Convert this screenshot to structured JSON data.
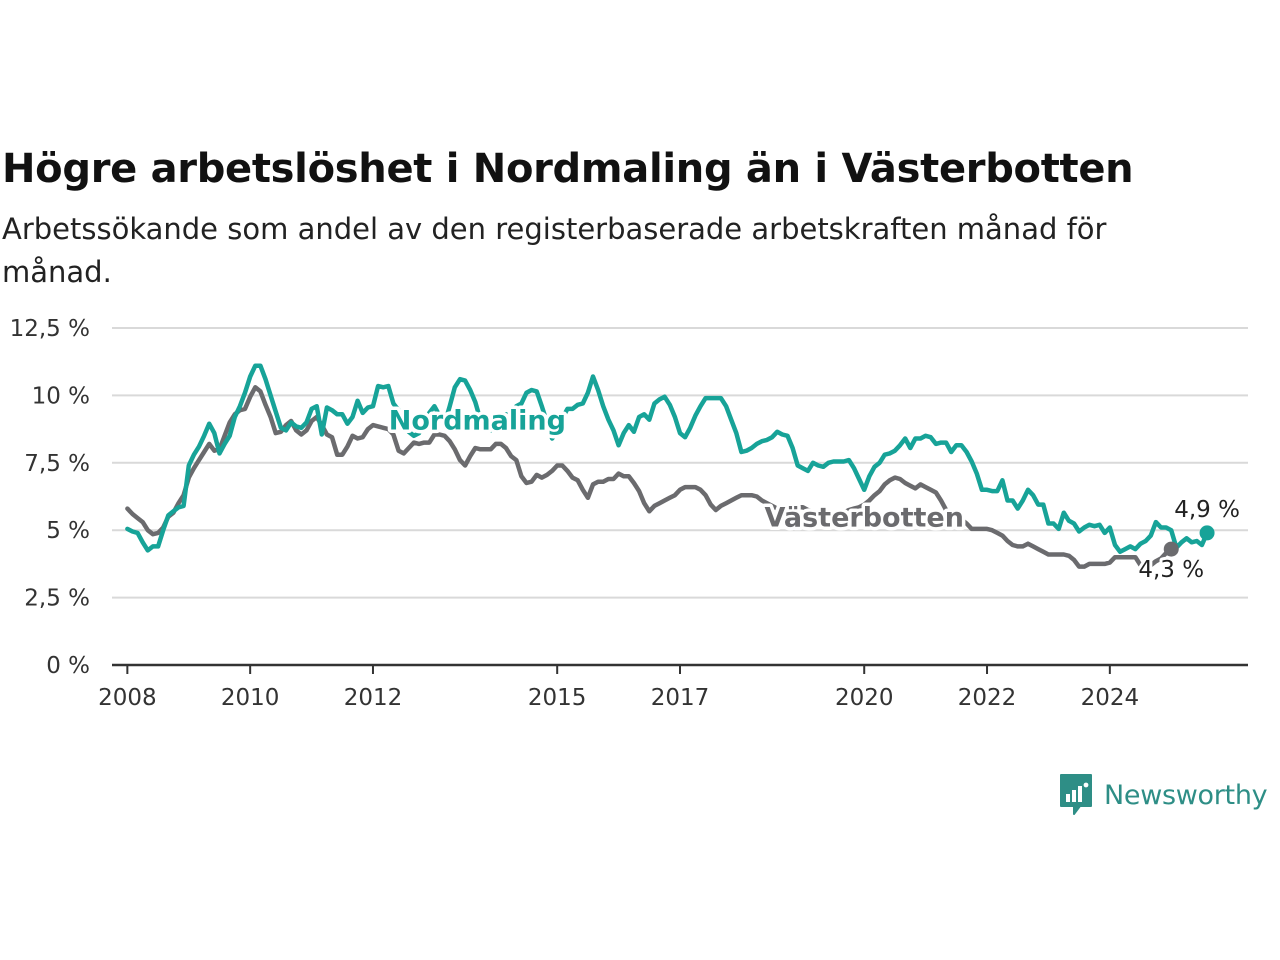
{
  "header": {
    "title": "Högre arbetslöshet i Nordmaling än i Västerbotten",
    "subtitle": "Arbetssökande som andel av den registerbaserade arbetskraften månad för månad."
  },
  "brand": {
    "name": "Newsworthy",
    "icon": "newsworthy-logo-icon",
    "color": "#2e8e86"
  },
  "chart_data": {
    "type": "line",
    "title": "Högre arbetslöshet i Nordmaling än i Västerbotten",
    "subtitle": "Arbetssökande som andel av den registerbaserade arbetskraften månad för månad.",
    "xlabel": "",
    "ylabel": "",
    "xlim": [
      2007.75,
      2026.25
    ],
    "ylim": [
      0,
      12.5
    ],
    "x_ticks": [
      2008,
      2010,
      2012,
      2015,
      2017,
      2020,
      2022,
      2024
    ],
    "x_tick_labels": [
      "2008",
      "2010",
      "2012",
      "2015",
      "2017",
      "2020",
      "2022",
      "2024"
    ],
    "y_ticks": [
      0,
      2.5,
      5,
      7.5,
      10,
      12.5
    ],
    "y_tick_labels": [
      "0 %",
      "2,5 %",
      "5 %",
      "7,5 %",
      "10 %",
      "12,5 %"
    ],
    "grid": true,
    "legend": "inline labels",
    "x_start": 2008.0,
    "x_step": 0.0833333,
    "series": [
      {
        "name": "Nordmaling",
        "color": "#17a398",
        "end_label": "4,9 %",
        "inline_label": "Nordmaling",
        "inline_label_at": {
          "x": 2013.7,
          "y": 9.1
        },
        "values": [
          5.05,
          4.95,
          4.9,
          4.55,
          4.25,
          4.4,
          4.4,
          5.0,
          5.55,
          5.7,
          5.85,
          5.9,
          7.4,
          7.8,
          8.1,
          8.5,
          8.95,
          8.6,
          7.85,
          8.2,
          8.5,
          9.2,
          9.6,
          10.1,
          10.7,
          11.1,
          11.1,
          10.6,
          10.0,
          9.4,
          8.8,
          8.7,
          9.0,
          8.85,
          8.8,
          9.0,
          9.5,
          9.6,
          8.55,
          9.55,
          9.45,
          9.3,
          9.3,
          8.95,
          9.2,
          9.8,
          9.35,
          9.55,
          9.6,
          10.35,
          10.3,
          10.35,
          9.7,
          9.45,
          8.85,
          8.65,
          8.5,
          8.6,
          9.0,
          9.35,
          9.6,
          9.25,
          8.95,
          9.6,
          10.3,
          10.6,
          10.55,
          10.2,
          9.75,
          9.1,
          8.85,
          8.7,
          8.95,
          9.0,
          9.3,
          9.2,
          9.6,
          9.7,
          10.1,
          10.2,
          10.15,
          9.6,
          9.0,
          8.4,
          8.65,
          9.15,
          9.5,
          9.5,
          9.65,
          9.7,
          10.1,
          10.7,
          10.2,
          9.6,
          9.1,
          8.7,
          8.15,
          8.6,
          8.9,
          8.65,
          9.2,
          9.3,
          9.1,
          9.7,
          9.85,
          9.95,
          9.65,
          9.2,
          8.6,
          8.45,
          8.8,
          9.25,
          9.6,
          9.9,
          9.9,
          9.9,
          9.9,
          9.6,
          9.1,
          8.6,
          7.9,
          7.95,
          8.05,
          8.2,
          8.3,
          8.35,
          8.45,
          8.65,
          8.55,
          8.5,
          8.05,
          7.4,
          7.3,
          7.2,
          7.5,
          7.4,
          7.35,
          7.5,
          7.55,
          7.55,
          7.55,
          7.6,
          7.3,
          6.9,
          6.5,
          7.0,
          7.35,
          7.5,
          7.8,
          7.85,
          7.95,
          8.15,
          8.4,
          8.05,
          8.4,
          8.4,
          8.5,
          8.45,
          8.2,
          8.25,
          8.25,
          7.9,
          8.15,
          8.15,
          7.9,
          7.55,
          7.1,
          6.5,
          6.5,
          6.45,
          6.45,
          6.85,
          6.1,
          6.1,
          5.8,
          6.1,
          6.5,
          6.3,
          5.95,
          5.95,
          5.25,
          5.25,
          5.05,
          5.65,
          5.35,
          5.25,
          4.95,
          5.1,
          5.2,
          5.15,
          5.2,
          4.9,
          5.1,
          4.45,
          4.2,
          4.3,
          4.4,
          4.3,
          4.5,
          4.6,
          4.8,
          5.3,
          5.1,
          5.1,
          5.0,
          4.35,
          4.55,
          4.7,
          4.55,
          4.6,
          4.45,
          4.9
        ]
      },
      {
        "name": "Västerbotten",
        "color": "#6b6b6e",
        "end_label": "4,3 %",
        "inline_label": "Västerbotten",
        "inline_label_at": {
          "x": 2020.0,
          "y": 5.5
        },
        "values": [
          5.8,
          5.6,
          5.45,
          5.3,
          5.0,
          4.85,
          4.9,
          5.1,
          5.5,
          5.65,
          6.0,
          6.3,
          6.95,
          7.3,
          7.6,
          7.9,
          8.2,
          7.95,
          8.0,
          8.5,
          9.0,
          9.3,
          9.45,
          9.5,
          9.95,
          10.3,
          10.15,
          9.65,
          9.2,
          8.6,
          8.65,
          8.9,
          9.05,
          8.7,
          8.55,
          8.7,
          9.05,
          9.2,
          8.9,
          8.55,
          8.45,
          7.8,
          7.8,
          8.1,
          8.5,
          8.4,
          8.45,
          8.75,
          8.9,
          8.85,
          8.8,
          8.75,
          8.55,
          7.95,
          7.85,
          8.05,
          8.25,
          8.2,
          8.25,
          8.25,
          8.55,
          8.55,
          8.5,
          8.3,
          8.0,
          7.6,
          7.4,
          7.75,
          8.05,
          8.0,
          8.0,
          8.0,
          8.2,
          8.2,
          8.05,
          7.75,
          7.6,
          7.0,
          6.75,
          6.8,
          7.05,
          6.95,
          7.05,
          7.2,
          7.4,
          7.4,
          7.2,
          6.95,
          6.85,
          6.5,
          6.2,
          6.7,
          6.8,
          6.8,
          6.9,
          6.9,
          7.1,
          7.0,
          7.0,
          6.75,
          6.45,
          6.0,
          5.7,
          5.9,
          6.0,
          6.1,
          6.2,
          6.3,
          6.5,
          6.6,
          6.6,
          6.6,
          6.5,
          6.3,
          5.95,
          5.75,
          5.9,
          6.0,
          6.1,
          6.2,
          6.3,
          6.3,
          6.3,
          6.25,
          6.1,
          6.0,
          5.9,
          5.8,
          5.75,
          5.75,
          5.8,
          5.85,
          5.85,
          5.75,
          5.7,
          5.6,
          5.5,
          5.45,
          5.5,
          5.6,
          5.65,
          5.75,
          5.8,
          5.85,
          5.95,
          6.1,
          6.3,
          6.45,
          6.7,
          6.85,
          6.95,
          6.9,
          6.75,
          6.65,
          6.55,
          6.7,
          6.6,
          6.5,
          6.4,
          6.1,
          5.75,
          5.55,
          5.45,
          5.4,
          5.25,
          5.05,
          5.05,
          5.05,
          5.05,
          5.0,
          4.9,
          4.8,
          4.6,
          4.45,
          4.4,
          4.4,
          4.5,
          4.4,
          4.3,
          4.2,
          4.1,
          4.1,
          4.1,
          4.1,
          4.05,
          3.9,
          3.65,
          3.65,
          3.75,
          3.75,
          3.75,
          3.75,
          3.8,
          4.0,
          4.0,
          4.0,
          4.0,
          4.0,
          3.7,
          3.75,
          3.7,
          3.85,
          3.95,
          4.15,
          4.3
        ]
      }
    ]
  }
}
